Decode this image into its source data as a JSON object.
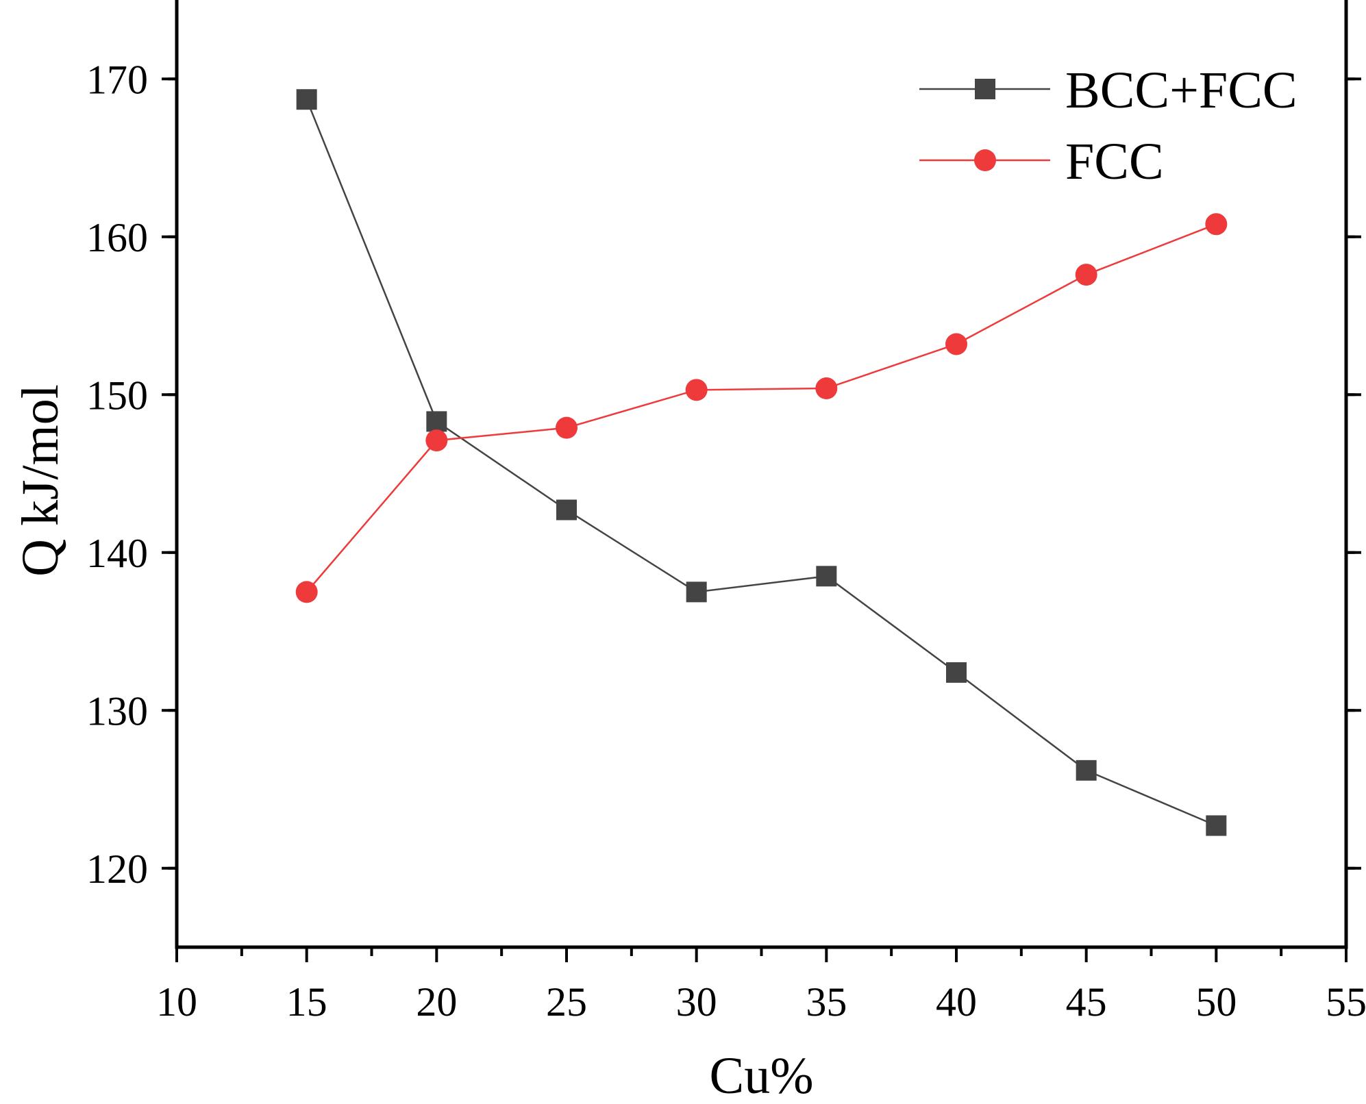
{
  "chart_data": {
    "type": "line",
    "title": "",
    "xlabel": "Cu%",
    "ylabel": "Q kJ/mol",
    "xlim": [
      10,
      55
    ],
    "ylim": [
      115,
      175
    ],
    "x_ticks": [
      10,
      15,
      20,
      25,
      30,
      35,
      40,
      45,
      50,
      55
    ],
    "y_ticks": [
      120,
      130,
      140,
      150,
      160,
      170
    ],
    "x_tick_labels": [
      "10",
      "15",
      "20",
      "25",
      "30",
      "35",
      "40",
      "45",
      "50",
      "55"
    ],
    "y_tick_labels": [
      "120",
      "130",
      "140",
      "150",
      "160",
      "170"
    ],
    "grid": false,
    "legend_position": "top-right",
    "x": [
      15,
      20,
      25,
      30,
      35,
      40,
      45,
      50
    ],
    "series": [
      {
        "name": "BCC+FCC",
        "marker": "square",
        "color": "#444444",
        "values": [
          168.7,
          148.3,
          142.7,
          137.5,
          138.5,
          132.4,
          126.2,
          122.7
        ]
      },
      {
        "name": "FCC",
        "marker": "circle",
        "color": "#ee3a3a",
        "values": [
          137.5,
          147.1,
          147.9,
          150.3,
          150.4,
          153.2,
          157.6,
          160.8
        ]
      }
    ]
  }
}
